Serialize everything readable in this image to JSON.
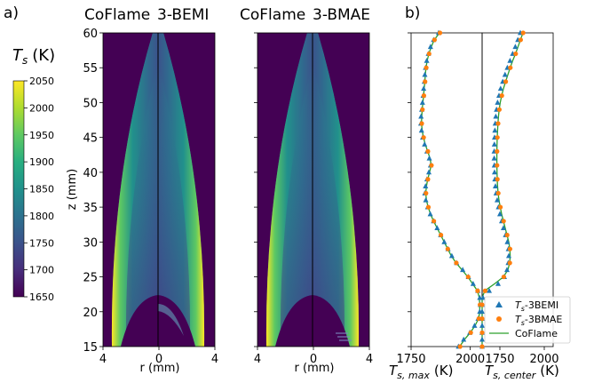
{
  "panel_a_label": "a)",
  "panel_b_label": "b)",
  "colorbar": {
    "label_main": "T",
    "label_sub": "s",
    "label_unit": "(K)",
    "min": 1650,
    "max": 2050,
    "ticks": [
      "2050",
      "2000",
      "1950",
      "1900",
      "1850",
      "1800",
      "1750",
      "1700",
      "1650"
    ],
    "colormap": "viridis"
  },
  "contour_panels": [
    {
      "left_title": "CoFlame",
      "right_title": "3-BEMI"
    },
    {
      "left_title": "CoFlame",
      "right_title": "3-BMAE"
    }
  ],
  "contour_axes": {
    "xlabel": "r (mm)",
    "ylabel": "z (mm)",
    "x_ticks": [
      "4",
      "0",
      "4"
    ],
    "y_ticks": [
      "15",
      "20",
      "25",
      "30",
      "35",
      "40",
      "45",
      "50",
      "55",
      "60"
    ],
    "xlim": [
      -4,
      4
    ],
    "ylim": [
      15,
      60
    ],
    "background_color": "#440154"
  },
  "chart_data": [
    {
      "type": "line",
      "title": "",
      "xlabel_main": "T",
      "xlabel_sub": "s, max",
      "xlabel_unit": "(K)",
      "xlim": [
        1750,
        2050
      ],
      "ylim": [
        15,
        60
      ],
      "x_ticks": [
        "1750",
        "2000"
      ],
      "z": [
        15,
        16,
        17,
        18,
        19,
        20,
        21,
        22,
        23,
        24,
        25,
        26,
        27,
        28,
        29,
        30,
        31,
        32,
        33,
        34,
        35,
        36,
        37,
        38,
        39,
        40,
        41,
        42,
        43,
        44,
        45,
        46,
        47,
        48,
        49,
        50,
        51,
        52,
        53,
        54,
        55,
        56,
        57,
        58,
        59,
        60
      ],
      "series": [
        {
          "name": "CoFlame",
          "values": [
            1955,
            1975,
            2000,
            2020,
            2035,
            2040,
            2040,
            2038,
            2030,
            2010,
            1990,
            1965,
            1940,
            1920,
            1905,
            1890,
            1875,
            1860,
            1845,
            1832,
            1822,
            1815,
            1812,
            1815,
            1820,
            1828,
            1835,
            1830,
            1820,
            1810,
            1802,
            1797,
            1794,
            1795,
            1797,
            1800,
            1803,
            1805,
            1808,
            1810,
            1813,
            1818,
            1825,
            1835,
            1848,
            1870
          ]
        },
        {
          "name": "T_s-3BEMI",
          "values": [
            1950,
            1972,
            1998,
            2018,
            2033,
            2040,
            2042,
            2040,
            2032,
            2012,
            1992,
            1968,
            1942,
            1922,
            1906,
            1890,
            1875,
            1860,
            1845,
            1831,
            1820,
            1812,
            1808,
            1811,
            1817,
            1825,
            1832,
            1827,
            1817,
            1807,
            1799,
            1794,
            1791,
            1792,
            1795,
            1798,
            1801,
            1803,
            1806,
            1808,
            1811,
            1816,
            1823,
            1832,
            1845,
            1866
          ]
        },
        {
          "name": "T_s-3BMAE",
          "values": [
            1957,
            1978,
            2002,
            2022,
            2036,
            2041,
            2041,
            2039,
            2031,
            2011,
            1991,
            1966,
            1941,
            1921,
            1905,
            1891,
            1876,
            1861,
            1846,
            1833,
            1823,
            1816,
            1813,
            1816,
            1821,
            1829,
            1836,
            1831,
            1821,
            1811,
            1803,
            1798,
            1795,
            1796,
            1798,
            1801,
            1804,
            1806,
            1809,
            1811,
            1814,
            1819,
            1826,
            1836,
            1849,
            1872
          ]
        }
      ]
    },
    {
      "type": "line",
      "title": "",
      "xlabel_main": "T",
      "xlabel_sub": "s, center",
      "xlabel_unit": "(K)",
      "xlim": [
        1650,
        2050
      ],
      "ylim": [
        15,
        60
      ],
      "x_ticks": [
        "1750",
        "2000"
      ],
      "z": [
        15,
        16,
        17,
        18,
        19,
        20,
        21,
        22,
        23,
        24,
        25,
        26,
        27,
        28,
        29,
        30,
        31,
        32,
        33,
        34,
        35,
        36,
        37,
        38,
        39,
        40,
        41,
        42,
        43,
        44,
        45,
        46,
        47,
        48,
        49,
        50,
        51,
        52,
        53,
        54,
        55,
        56,
        57,
        58,
        59,
        60
      ],
      "series": [
        {
          "name": "CoFlame",
          "values": [
            1650,
            1650,
            1650,
            1650,
            1650,
            1650,
            1650,
            1650,
            1665,
            1720,
            1770,
            1795,
            1805,
            1808,
            1806,
            1800,
            1790,
            1780,
            1770,
            1760,
            1752,
            1745,
            1740,
            1737,
            1735,
            1734,
            1733,
            1733,
            1733,
            1734,
            1735,
            1737,
            1739,
            1742,
            1746,
            1752,
            1760,
            1770,
            1782,
            1795,
            1808,
            1822,
            1838,
            1852,
            1866,
            1880
          ]
        },
        {
          "name": "T_s-3BEMI",
          "values": [
            1650,
            1650,
            1650,
            1650,
            1650,
            1650,
            1650,
            1655,
            1690,
            1740,
            1775,
            1790,
            1797,
            1800,
            1798,
            1792,
            1782,
            1770,
            1760,
            1750,
            1742,
            1735,
            1729,
            1725,
            1722,
            1720,
            1719,
            1718,
            1718,
            1719,
            1720,
            1722,
            1724,
            1727,
            1731,
            1737,
            1745,
            1754,
            1766,
            1779,
            1792,
            1807,
            1822,
            1837,
            1851,
            1865
          ]
        },
        {
          "name": "T_s-3BMAE",
          "values": [
            1650,
            1650,
            1650,
            1650,
            1650,
            1650,
            1650,
            1650,
            1667,
            1722,
            1772,
            1797,
            1806,
            1809,
            1807,
            1801,
            1791,
            1781,
            1771,
            1761,
            1753,
            1746,
            1741,
            1738,
            1736,
            1735,
            1734,
            1734,
            1734,
            1735,
            1736,
            1738,
            1740,
            1743,
            1747,
            1753,
            1761,
            1771,
            1783,
            1796,
            1809,
            1823,
            1839,
            1853,
            1867,
            1881
          ]
        }
      ]
    }
  ],
  "legend": {
    "placement": "lower-right",
    "entries": [
      {
        "main": "T",
        "sub": "s",
        "suffix": "-3BEMI",
        "marker": "triangle",
        "color": "#1f77b4"
      },
      {
        "main": "T",
        "sub": "s",
        "suffix": "-3BMAE",
        "marker": "circle",
        "color": "#ff7f0e"
      },
      {
        "main": "",
        "sub": "",
        "suffix": "CoFlame",
        "marker": "line",
        "color": "#2ca02c"
      }
    ]
  },
  "colors": {
    "coflame": "#2ca02c",
    "bemi": "#1f77b4",
    "bmae": "#ff7f0e"
  }
}
